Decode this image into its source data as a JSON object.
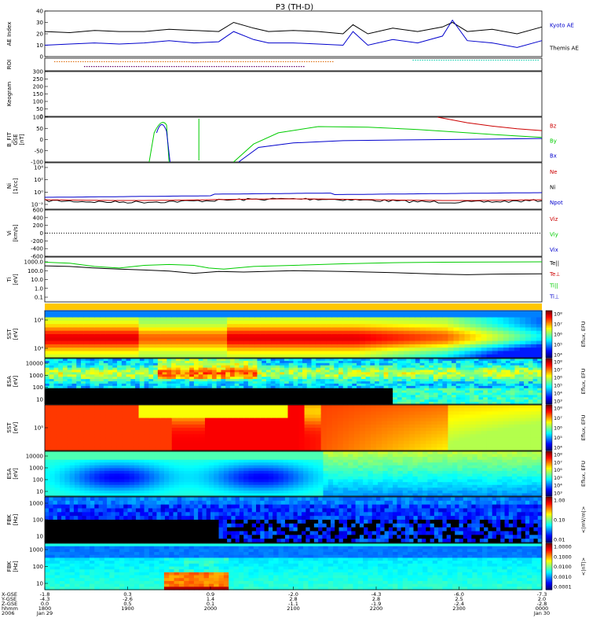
{
  "title": "P3 (TH-D)",
  "colors": {
    "kyoto": "#0000cc",
    "themis": "#000000",
    "red": "#cc0000",
    "green": "#00cc00",
    "blue": "#0000cc",
    "black": "#000000",
    "roi_orange": "#dd6600",
    "roi_teal": "#00ccaa"
  },
  "chart_data": [
    {
      "type": "line",
      "id": "ae",
      "ylabel": "AE Index",
      "ylim": [
        0,
        40
      ],
      "yticks": [
        "0",
        "10",
        "20",
        "30",
        "40"
      ],
      "legend": [
        "Kyoto AE",
        "Themis AE"
      ],
      "series": [
        {
          "name": "Themis AE",
          "color": "#000000",
          "x": [
            0,
            0.05,
            0.1,
            0.15,
            0.2,
            0.25,
            0.3,
            0.35,
            0.38,
            0.42,
            0.45,
            0.5,
            0.55,
            0.6,
            0.62,
            0.65,
            0.7,
            0.75,
            0.8,
            0.82,
            0.85,
            0.9,
            0.95,
            1.0
          ],
          "values": [
            22,
            21,
            23,
            22,
            22,
            24,
            23,
            22,
            30,
            25,
            22,
            23,
            22,
            20,
            28,
            20,
            25,
            22,
            26,
            30,
            22,
            24,
            20,
            26
          ]
        },
        {
          "name": "Kyoto AE",
          "color": "#0000cc",
          "x": [
            0,
            0.05,
            0.1,
            0.15,
            0.2,
            0.25,
            0.3,
            0.35,
            0.38,
            0.42,
            0.45,
            0.5,
            0.55,
            0.6,
            0.62,
            0.65,
            0.7,
            0.75,
            0.8,
            0.82,
            0.85,
            0.9,
            0.95,
            1.0
          ],
          "values": [
            10,
            11,
            12,
            11,
            12,
            14,
            12,
            13,
            22,
            15,
            12,
            12,
            11,
            10,
            22,
            10,
            15,
            12,
            18,
            32,
            14,
            12,
            8,
            14
          ]
        }
      ]
    },
    {
      "type": "bar",
      "id": "roi",
      "ylabel": "ROI"
    },
    {
      "type": "line",
      "id": "keogram",
      "ylabel": "Keogram",
      "ylim": [
        0,
        300
      ],
      "yticks": [
        "0",
        "50",
        "100",
        "150",
        "200",
        "250",
        "300"
      ]
    },
    {
      "type": "line",
      "id": "bfit",
      "ylabel": [
        "B_FIT",
        "GSE",
        "[nT]"
      ],
      "ylim": [
        -100,
        100
      ],
      "yticks": [
        "-100",
        "-50",
        "0",
        "50",
        "100"
      ],
      "legend": [
        "Bz",
        "By",
        "Bx"
      ],
      "series": [
        {
          "name": "Bz",
          "color": "#cc0000",
          "x": [
            0.79,
            0.85,
            0.9,
            0.95,
            1.0
          ],
          "values": [
            100,
            75,
            60,
            48,
            40
          ]
        },
        {
          "name": "By",
          "color": "#00cc00",
          "x": [
            0.38,
            0.42,
            0.47,
            0.55,
            0.65,
            0.75,
            0.85,
            0.92,
            1.0
          ],
          "values": [
            -100,
            -20,
            30,
            58,
            55,
            45,
            30,
            20,
            10
          ]
        },
        {
          "name": "Bx",
          "color": "#0000cc",
          "x": [
            0.39,
            0.43,
            0.5,
            0.6,
            0.7,
            0.8,
            0.9,
            1.0
          ],
          "values": [
            -100,
            -35,
            -15,
            -5,
            -2,
            0,
            2,
            5
          ]
        }
      ]
    },
    {
      "type": "line",
      "id": "density",
      "ylabel": [
        "Ni",
        "[1/cc]"
      ],
      "legend": [
        "Ne",
        "Ni",
        "Npot"
      ],
      "ytick_labels": [
        "10⁻²",
        "10⁰",
        "10²",
        "10⁴"
      ]
    },
    {
      "type": "line",
      "id": "velocity",
      "ylabel": [
        "Vi",
        "[km/s]"
      ],
      "ylim": [
        -600,
        600
      ],
      "yticks": [
        "-600",
        "-400",
        "-200",
        "0",
        "200",
        "400",
        "600"
      ],
      "legend": [
        "Viz",
        "Viy",
        "Vix"
      ]
    },
    {
      "type": "line",
      "id": "temp",
      "ylabel": [
        "Ti",
        "[eV]"
      ],
      "yticks": [
        "0.1",
        "1.0",
        "10.0",
        "100.0",
        "1000.0"
      ],
      "legend": [
        "Te||",
        "Te⊥",
        "Ti||",
        "Ti⊥"
      ],
      "series": [
        {
          "name": "Te||",
          "color": "#00cc00",
          "x": [
            0,
            0.05,
            0.1,
            0.15,
            0.2,
            0.25,
            0.3,
            0.33,
            0.36,
            0.42,
            0.5,
            0.6,
            0.7,
            0.8,
            0.9,
            1.0
          ],
          "values": [
            900,
            700,
            300,
            200,
            400,
            500,
            400,
            200,
            150,
            300,
            400,
            600,
            800,
            900,
            950,
            1000
          ]
        },
        {
          "name": "Ti||",
          "color": "#000000",
          "x": [
            0,
            0.05,
            0.1,
            0.15,
            0.2,
            0.25,
            0.3,
            0.35,
            0.4,
            0.5,
            0.6,
            0.7,
            0.8,
            0.85,
            0.9,
            1.0
          ],
          "values": [
            350,
            300,
            200,
            150,
            120,
            90,
            50,
            80,
            70,
            100,
            80,
            60,
            40,
            35,
            40,
            45
          ]
        }
      ]
    },
    {
      "type": "heatmap",
      "id": "sst1",
      "ylabel": [
        "SST",
        "[eV]"
      ],
      "yticks": [
        "10⁴",
        "10⁶"
      ],
      "colorbar_label": "Eflux, EFU",
      "colorbar_ticks": [
        "10⁴",
        "10⁵",
        "10⁶",
        "10⁷",
        "10⁸"
      ]
    },
    {
      "type": "heatmap",
      "id": "esa1",
      "ylabel": [
        "ESA",
        "[eV]"
      ],
      "yticks": [
        "10",
        "100",
        "1000",
        "10000"
      ],
      "colorbar_label": "Eflux, EFU",
      "colorbar_ticks": [
        "10³",
        "10⁴",
        "10⁵",
        "10⁶",
        "10⁷",
        "10⁸"
      ]
    },
    {
      "type": "heatmap",
      "id": "sst2",
      "ylabel": [
        "SST",
        "[eV]"
      ],
      "yticks": [
        "10⁵"
      ],
      "colorbar_label": "Eflux, EFU",
      "colorbar_ticks": [
        "10⁴",
        "10⁵",
        "10⁶",
        "10⁷",
        "10⁸"
      ]
    },
    {
      "type": "heatmap",
      "id": "esa2",
      "ylabel": [
        "ESA",
        "[eV]"
      ],
      "yticks": [
        "10",
        "100",
        "1000",
        "10000"
      ],
      "colorbar_label": "Eflux, EFU",
      "colorbar_ticks": [
        "10³",
        "10⁴",
        "10⁵",
        "10⁶",
        "10⁷",
        "10⁸"
      ]
    },
    {
      "type": "heatmap",
      "id": "fbk1",
      "ylabel": [
        "FBK",
        "[Hz]"
      ],
      "yticks": [
        "10",
        "100",
        "1000"
      ],
      "colorbar_label": "<|mV/m|>",
      "colorbar_ticks": [
        "0.01",
        "0.10",
        "1.00"
      ]
    },
    {
      "type": "heatmap",
      "id": "fbk2",
      "ylabel": [
        "FBK",
        "[Hz]"
      ],
      "yticks": [
        "10",
        "100",
        "1000"
      ],
      "colorbar_label": "<|nT|>",
      "colorbar_ticks": [
        "0.0001",
        "0.0010",
        "0.0100",
        "0.1000",
        "1.0000"
      ]
    }
  ],
  "xaxis": {
    "row_labels": [
      "X-GSE",
      "Y-GSE",
      "Z-GSE",
      "hhmm",
      "2006"
    ],
    "columns": [
      {
        "x": -1.8,
        "y": -4.3,
        "z": 0.0,
        "hhmm": "1800",
        "date": "Jan 29"
      },
      {
        "x": 0.3,
        "y": -2.6,
        "z": 0.5,
        "hhmm": "1900",
        "date": ""
      },
      {
        "x": 0.9,
        "y": 1.4,
        "z": 0.1,
        "hhmm": "2000",
        "date": ""
      },
      {
        "x": -2.0,
        "y": 2.8,
        "z": -1.1,
        "hhmm": "2100",
        "date": ""
      },
      {
        "x": -4.3,
        "y": 2.8,
        "z": -1.9,
        "hhmm": "2200",
        "date": ""
      },
      {
        "x": -6.0,
        "y": 2.5,
        "z": -2.4,
        "hhmm": "2300",
        "date": ""
      },
      {
        "x": -7.3,
        "y": 2.0,
        "z": -2.8,
        "hhmm": "0000",
        "date": "Jan 30"
      }
    ]
  }
}
